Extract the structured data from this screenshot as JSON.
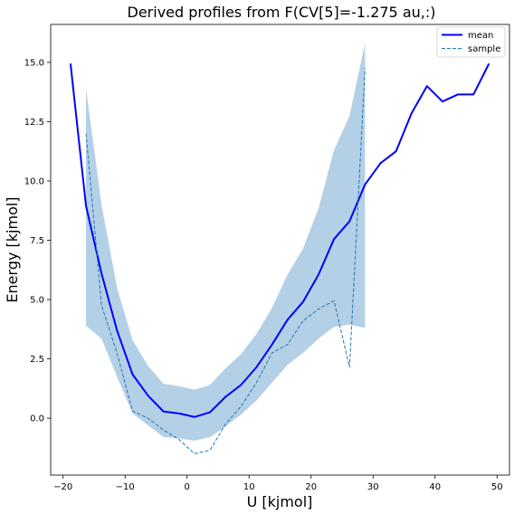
{
  "chart_data": {
    "type": "line",
    "title": "Derived profiles from F(CV[5]=-1.275 au,:)",
    "xlabel": "U [kjmol]",
    "ylabel": "Energy [kjmol]",
    "xlim": [
      -22,
      52
    ],
    "ylim": [
      -2.4,
      16.6
    ],
    "xticks": [
      -20,
      -10,
      0,
      10,
      20,
      30,
      40,
      50
    ],
    "xtick_labels": [
      "−20",
      "−10",
      "0",
      "10",
      "20",
      "30",
      "40",
      "50"
    ],
    "yticks": [
      0.0,
      2.5,
      5.0,
      7.5,
      10.0,
      12.5,
      15.0
    ],
    "ytick_labels": [
      "0.0",
      "2.5",
      "5.0",
      "7.5",
      "10.0",
      "12.5",
      "15.0"
    ],
    "legend_position": "top-right",
    "grid": false,
    "colors": {
      "mean": "#0000ff",
      "sample": "#1f77b4",
      "band": "#b3d0e6"
    },
    "series": [
      {
        "name": "mean",
        "style": "solid",
        "x": [
          -18.8,
          -16.3,
          -13.8,
          -11.3,
          -8.8,
          -6.3,
          -3.8,
          -1.3,
          1.2,
          3.7,
          6.2,
          8.7,
          11.2,
          13.7,
          16.2,
          18.7,
          21.2,
          23.7,
          26.2,
          28.7,
          31.2,
          33.7,
          36.2,
          38.7,
          41.2,
          43.7,
          46.2,
          48.7
        ],
        "y": [
          14.95,
          8.95,
          6.1,
          3.7,
          1.85,
          0.95,
          0.28,
          0.2,
          0.05,
          0.25,
          0.9,
          1.4,
          2.15,
          3.1,
          4.15,
          4.9,
          6.05,
          7.55,
          8.3,
          9.85,
          10.75,
          11.25,
          12.85,
          14.0,
          13.35,
          13.65,
          13.65,
          14.95
        ]
      },
      {
        "name": "sample",
        "style": "dashed",
        "x": [
          -16.3,
          -13.8,
          -11.3,
          -8.8,
          -6.3,
          -3.8,
          -1.3,
          1.2,
          3.7,
          6.2,
          8.7,
          11.2,
          13.7,
          16.2,
          18.7,
          21.2,
          23.7,
          26.2,
          28.7
        ],
        "y": [
          12.0,
          4.75,
          2.75,
          0.3,
          0.0,
          -0.5,
          -0.9,
          -1.5,
          -1.35,
          -0.25,
          0.5,
          1.5,
          2.75,
          3.1,
          4.1,
          4.6,
          4.95,
          2.15,
          14.75
        ]
      }
    ],
    "band": {
      "x": [
        -16.3,
        -13.8,
        -11.3,
        -8.8,
        -6.3,
        -3.8,
        -1.3,
        1.2,
        3.7,
        6.2,
        8.7,
        11.2,
        13.7,
        16.2,
        18.7,
        21.2,
        23.7,
        26.2,
        28.7
      ],
      "upper": [
        13.9,
        9.0,
        5.5,
        3.3,
        2.2,
        1.45,
        1.35,
        1.2,
        1.4,
        2.1,
        2.7,
        3.55,
        4.65,
        6.05,
        7.15,
        8.85,
        11.3,
        12.75,
        15.8
      ],
      "lower": [
        3.9,
        3.35,
        1.75,
        0.2,
        -0.3,
        -0.8,
        -0.85,
        -0.95,
        -0.8,
        -0.35,
        0.15,
        0.75,
        1.5,
        2.25,
        2.75,
        3.35,
        3.85,
        3.95,
        3.8
      ]
    }
  }
}
